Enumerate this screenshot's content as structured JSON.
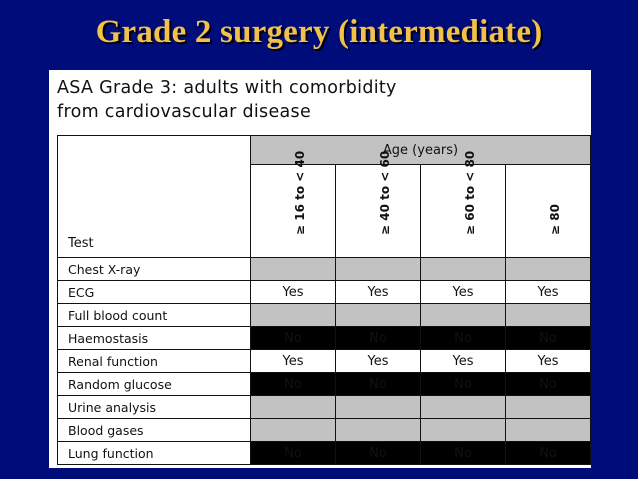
{
  "slide": {
    "title": "Grade 2 surgery (intermediate)"
  },
  "panel": {
    "heading_line1": "ASA Grade 3: adults with comorbidity",
    "heading_line2": "from cardiovascular disease"
  },
  "table": {
    "test_header": "Test",
    "age_header": "Age (years)",
    "age_bands": [
      "≥ 16 to < 40",
      "≥ 40 to < 60",
      "≥ 60 to < 80",
      "≥ 80"
    ],
    "rows": [
      {
        "test": "Chest X-ray",
        "shade": "grey",
        "values": [
          "",
          "",
          "",
          ""
        ]
      },
      {
        "test": "ECG",
        "shade": "white",
        "values": [
          "Yes",
          "Yes",
          "Yes",
          "Yes"
        ]
      },
      {
        "test": "Full blood count",
        "shade": "grey",
        "values": [
          "",
          "",
          "",
          ""
        ]
      },
      {
        "test": "Haemostasis",
        "shade": "black",
        "values": [
          "No",
          "No",
          "No",
          "No"
        ]
      },
      {
        "test": "Renal function",
        "shade": "white",
        "values": [
          "Yes",
          "Yes",
          "Yes",
          "Yes"
        ]
      },
      {
        "test": "Random glucose",
        "shade": "black",
        "values": [
          "No",
          "No",
          "No",
          "No"
        ]
      },
      {
        "test": "Urine analysis",
        "shade": "grey",
        "values": [
          "",
          "",
          "",
          ""
        ]
      },
      {
        "test": "Blood gases",
        "shade": "grey",
        "values": [
          "",
          "",
          "",
          ""
        ]
      },
      {
        "test": "Lung function",
        "shade": "black",
        "values": [
          "No",
          "No",
          "No",
          "No"
        ]
      }
    ],
    "colors": {
      "grey": "#c2c2c2",
      "white": "#ffffff",
      "black": "#000000"
    }
  },
  "theme": {
    "background": "#000c7a",
    "title_color": "#f2c14a"
  }
}
